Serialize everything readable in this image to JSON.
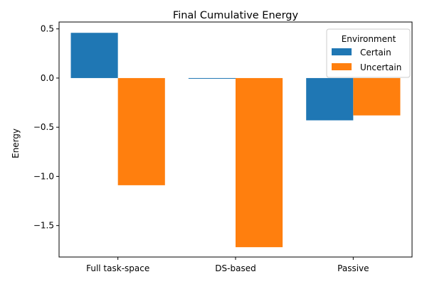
{
  "chart_data": {
    "type": "bar",
    "title": "Final Cumulative Energy",
    "xlabel": "",
    "ylabel": "Energy",
    "categories": [
      "Full task-space",
      "DS-based",
      "Passive"
    ],
    "series": [
      {
        "name": "Certain",
        "values": [
          0.46,
          -0.005,
          -0.43
        ],
        "color": "#1f77b4"
      },
      {
        "name": "Uncertain",
        "values": [
          -1.09,
          -1.72,
          -0.38
        ],
        "color": "#ff7f0e"
      }
    ],
    "ylim": [
      -1.82,
      0.57
    ],
    "yticks": [
      0.5,
      0.0,
      -0.5,
      -1.0,
      -1.5
    ],
    "ytick_labels": [
      "0.5",
      "0.0",
      "−0.5",
      "−1.0",
      "−1.5"
    ],
    "legend": {
      "title": "Environment",
      "placement": "top-right"
    },
    "grid": false
  }
}
